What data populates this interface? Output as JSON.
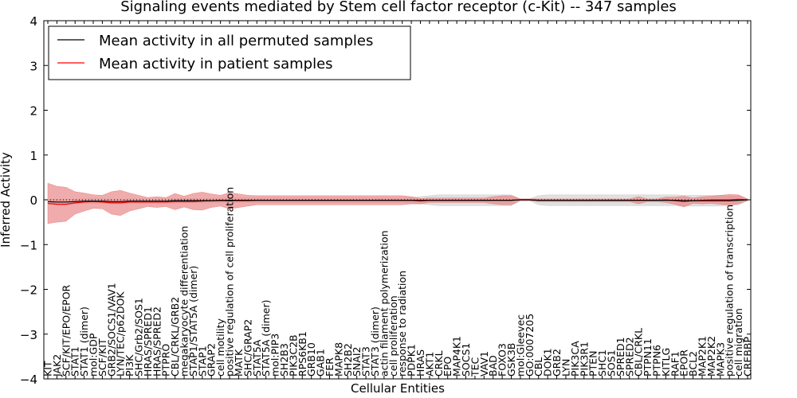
{
  "chart_data": {
    "type": "line",
    "title": "Signaling events mediated by Stem cell factor receptor (c-Kit) -- 347 samples",
    "xlabel": "Cellular Entities",
    "ylabel": "Inferred Activity",
    "ylim": [
      -4,
      4
    ],
    "yticks": [
      -4,
      -3,
      -2,
      -1,
      0,
      1,
      2,
      3,
      4
    ],
    "grid": false,
    "legend_position": "top-left",
    "reference_line": 0,
    "categories": [
      "KIT",
      "JAK2",
      "SCF/KIT/EPO/EPOR",
      "STAT1",
      "STAT1 (dimer)",
      "mol:GDP",
      "SCF/KIT",
      "GRB2/SOCS1/VAV1",
      "LYN/TEC/p62DOK",
      "PI3K",
      "SHC/Grb2/SOS1",
      "HRAS/SPRED1",
      "HRAS/SPRED2",
      "PTPRO",
      "CBL/CRKL/GRB2",
      "megakaryocyte differentiation",
      "STAP1/STAT5A (dimer)",
      "STAP1",
      "GRAP2",
      "cell motility",
      "positive regulation of cell proliferation",
      "MATK",
      "SHC/GRAP2",
      "STAT5A",
      "STAT5A (dimer)",
      "mol:PIP3",
      "SH2B3",
      "PIK3C2B",
      "RPS6KB1",
      "GRB10",
      "GAB1",
      "FER",
      "MAPK8",
      "SH2B2",
      "SNAI2",
      "STAT3",
      "STAT3 (dimer)",
      "actin filament polymerization",
      "cell proliferation",
      "response to radiation",
      "PDPK1",
      "HRAS",
      "AKT1",
      "CRKL",
      "EPO",
      "MAP4K1",
      "SOCS1",
      "TEC",
      "VAV1",
      "BAD",
      "FOXO3",
      "GSK3B",
      "mol:Gleevec",
      "GO:0007205",
      "CBL",
      "DOK1",
      "GRB2",
      "LYN",
      "PIK3CA",
      "PIK3R1",
      "PTEN",
      "SHC1",
      "SOS1",
      "SPRED1",
      "SPRED2",
      "CBL/CRKL",
      "PTPN11",
      "PTPN6",
      "KITLG",
      "RAF1",
      "EPOR",
      "BCL2",
      "MAP2K1",
      "MAP2K2",
      "MAPK3",
      "positive regulation of transcription",
      "cell migration",
      "CREBBP"
    ],
    "series": [
      {
        "name": "Mean activity in all permuted samples",
        "color": "#000000",
        "values": [
          -0.04,
          -0.05,
          -0.05,
          -0.04,
          -0.03,
          -0.03,
          -0.03,
          -0.04,
          -0.04,
          -0.03,
          -0.03,
          -0.03,
          -0.03,
          -0.03,
          -0.02,
          -0.02,
          -0.02,
          -0.02,
          -0.02,
          -0.01,
          -0.01,
          -0.01,
          -0.01,
          -0.01,
          -0.01,
          -0.01,
          -0.01,
          -0.01,
          -0.01,
          -0.01,
          -0.01,
          -0.01,
          -0.01,
          -0.01,
          -0.01,
          -0.01,
          -0.01,
          -0.01,
          -0.01,
          -0.01,
          -0.01,
          -0.01,
          -0.01,
          -0.01,
          -0.01,
          -0.01,
          -0.01,
          -0.01,
          -0.01,
          -0.01,
          -0.01,
          -0.01,
          0.0,
          0.0,
          -0.01,
          -0.01,
          -0.01,
          -0.01,
          -0.01,
          -0.01,
          -0.01,
          -0.01,
          -0.01,
          -0.01,
          -0.01,
          -0.01,
          -0.01,
          -0.01,
          -0.01,
          -0.01,
          -0.02,
          -0.02,
          -0.02,
          -0.02,
          -0.02,
          -0.02,
          -0.01,
          0.0
        ],
        "band": [
          0.05,
          0.06,
          0.06,
          0.05,
          0.05,
          0.05,
          0.05,
          0.05,
          0.05,
          0.05,
          0.05,
          0.05,
          0.05,
          0.05,
          0.05,
          0.05,
          0.05,
          0.05,
          0.05,
          0.05,
          0.05,
          0.05,
          0.05,
          0.05,
          0.05,
          0.05,
          0.05,
          0.05,
          0.05,
          0.05,
          0.05,
          0.05,
          0.05,
          0.05,
          0.05,
          0.05,
          0.05,
          0.05,
          0.05,
          0.05,
          0.06,
          0.08,
          0.1,
          0.12,
          0.12,
          0.12,
          0.12,
          0.12,
          0.12,
          0.12,
          0.12,
          0.12,
          0.02,
          0.02,
          0.1,
          0.12,
          0.12,
          0.12,
          0.12,
          0.12,
          0.12,
          0.12,
          0.12,
          0.12,
          0.12,
          0.12,
          0.12,
          0.12,
          0.12,
          0.12,
          0.12,
          0.12,
          0.12,
          0.12,
          0.12,
          0.1,
          0.1,
          0.02
        ],
        "band_color": "#cccccc"
      },
      {
        "name": "Mean activity in patient samples",
        "color": "#ff0000",
        "values": [
          -0.08,
          -0.1,
          -0.1,
          -0.07,
          -0.05,
          -0.04,
          -0.05,
          -0.07,
          -0.07,
          -0.05,
          -0.05,
          -0.05,
          -0.05,
          -0.05,
          -0.04,
          -0.04,
          -0.04,
          -0.03,
          -0.02,
          -0.02,
          -0.02,
          -0.02,
          -0.02,
          -0.01,
          -0.01,
          -0.01,
          -0.01,
          -0.01,
          -0.01,
          -0.01,
          -0.01,
          -0.01,
          -0.01,
          -0.01,
          -0.01,
          -0.01,
          -0.01,
          -0.01,
          -0.01,
          -0.01,
          -0.01,
          -0.03,
          -0.01,
          -0.01,
          -0.01,
          -0.01,
          -0.01,
          -0.01,
          -0.01,
          -0.01,
          -0.01,
          -0.01,
          0.0,
          0.0,
          -0.01,
          -0.01,
          -0.01,
          -0.01,
          -0.01,
          -0.01,
          -0.01,
          -0.01,
          -0.01,
          -0.01,
          -0.01,
          -0.01,
          -0.01,
          -0.01,
          0.0,
          -0.02,
          -0.04,
          -0.02,
          -0.01,
          0.0,
          0.0,
          0.0,
          0.01,
          0.0
        ],
        "band": [
          0.45,
          0.4,
          0.38,
          0.25,
          0.2,
          0.15,
          0.15,
          0.25,
          0.28,
          0.2,
          0.15,
          0.1,
          0.12,
          0.1,
          0.18,
          0.12,
          0.18,
          0.2,
          0.15,
          0.12,
          0.18,
          0.15,
          0.12,
          0.1,
          0.1,
          0.1,
          0.1,
          0.1,
          0.1,
          0.1,
          0.1,
          0.1,
          0.1,
          0.1,
          0.1,
          0.1,
          0.1,
          0.1,
          0.1,
          0.1,
          0.08,
          0.06,
          0.05,
          0.05,
          0.05,
          0.05,
          0.05,
          0.05,
          0.05,
          0.08,
          0.1,
          0.1,
          0.02,
          0.02,
          0.03,
          0.03,
          0.03,
          0.03,
          0.03,
          0.03,
          0.03,
          0.03,
          0.03,
          0.03,
          0.03,
          0.08,
          0.03,
          0.03,
          0.06,
          0.08,
          0.12,
          0.06,
          0.08,
          0.08,
          0.1,
          0.12,
          0.1,
          0.02
        ],
        "band_color": "#e88080"
      }
    ]
  }
}
